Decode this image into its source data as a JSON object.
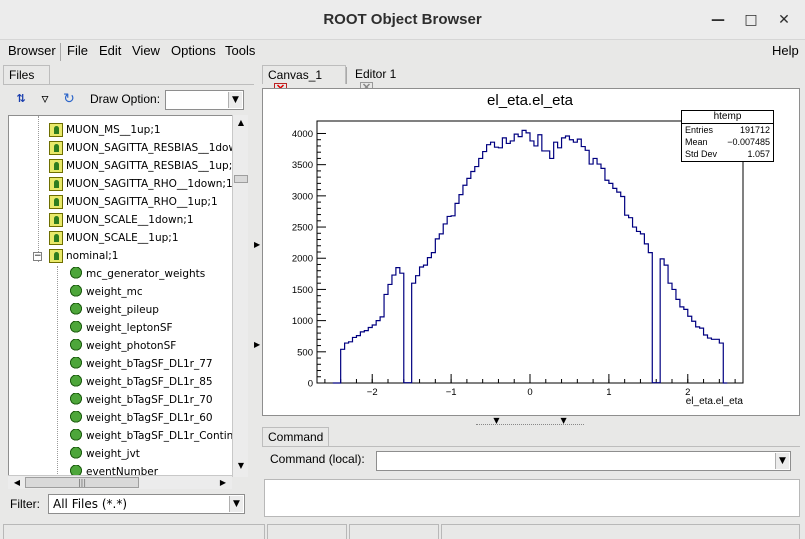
{
  "window": {
    "title": "ROOT Object Browser"
  },
  "menubar": {
    "left": [
      {
        "id": "browser",
        "label": "Browser"
      },
      {
        "id": "file",
        "label": "File"
      },
      {
        "id": "edit",
        "label": "Edit"
      },
      {
        "id": "view",
        "label": "View"
      },
      {
        "id": "options",
        "label": "Options"
      },
      {
        "id": "tools",
        "label": "Tools"
      }
    ],
    "help": "Help"
  },
  "left_panel": {
    "tab": "Files",
    "draw_option_label": "Draw Option:",
    "draw_option_value": "",
    "filter_label": "Filter:",
    "filter_value": "All Files (*.*)"
  },
  "tree": {
    "items": [
      {
        "label": "MUON_MS__1up;1",
        "type": "tree"
      },
      {
        "label": "MUON_SAGITTA_RESBIAS__1dow",
        "type": "tree"
      },
      {
        "label": "MUON_SAGITTA_RESBIAS__1up;",
        "type": "tree"
      },
      {
        "label": "MUON_SAGITTA_RHO__1down;1",
        "type": "tree"
      },
      {
        "label": "MUON_SAGITTA_RHO__1up;1",
        "type": "tree"
      },
      {
        "label": "MUON_SCALE__1down;1",
        "type": "tree"
      },
      {
        "label": "MUON_SCALE__1up;1",
        "type": "tree"
      },
      {
        "label": "nominal;1",
        "type": "tree"
      },
      {
        "label": "mc_generator_weights",
        "type": "leaf"
      },
      {
        "label": "weight_mc",
        "type": "leaf"
      },
      {
        "label": "weight_pileup",
        "type": "leaf"
      },
      {
        "label": "weight_leptonSF",
        "type": "leaf"
      },
      {
        "label": "weight_photonSF",
        "type": "leaf"
      },
      {
        "label": "weight_bTagSF_DL1r_77",
        "type": "leaf"
      },
      {
        "label": "weight_bTagSF_DL1r_85",
        "type": "leaf"
      },
      {
        "label": "weight_bTagSF_DL1r_70",
        "type": "leaf"
      },
      {
        "label": "weight_bTagSF_DL1r_60",
        "type": "leaf"
      },
      {
        "label": "weight_bTagSF_DL1r_Continuo",
        "type": "leaf"
      },
      {
        "label": "weight_jvt",
        "type": "leaf"
      },
      {
        "label": "eventNumber",
        "type": "leaf"
      }
    ]
  },
  "tabs": {
    "canvas": "Canvas_1",
    "editor": "Editor 1"
  },
  "stats": {
    "header": "htemp",
    "rows": [
      {
        "key": "Entries",
        "value": "191712"
      },
      {
        "key": "Mean",
        "value": "−0.007485"
      },
      {
        "key": "Std Dev",
        "value": "1.057"
      }
    ]
  },
  "chart_data": {
    "type": "bar",
    "style": "step-histogram",
    "title": "el_eta.el_eta",
    "xlabel": "el_eta.el_eta",
    "ylabel": "",
    "xlim": [
      -2.7,
      2.7
    ],
    "ylim": [
      0,
      4200
    ],
    "bin_range": [
      -2.5,
      2.5
    ],
    "x_ticks": [
      "−2",
      "−1",
      "0",
      "1",
      "2"
    ],
    "y_ticks": [
      "0",
      "500",
      "1000",
      "1500",
      "2000",
      "2500",
      "3000",
      "3500",
      "4000"
    ],
    "line_color": "#000080",
    "values": [
      0,
      0,
      540,
      640,
      660,
      730,
      760,
      820,
      840,
      890,
      930,
      1000,
      1060,
      1420,
      1580,
      1730,
      1850,
      1760,
      5,
      5,
      1600,
      1720,
      1860,
      1890,
      2010,
      2090,
      2310,
      2390,
      2550,
      2670,
      2680,
      2880,
      3020,
      3170,
      3280,
      3390,
      3470,
      3600,
      3710,
      3820,
      3860,
      3780,
      3770,
      3930,
      3840,
      3880,
      3990,
      3950,
      4050,
      4010,
      3880,
      3800,
      3980,
      3720,
      3720,
      3600,
      3860,
      3770,
      3930,
      3960,
      3900,
      3860,
      3910,
      3790,
      3730,
      3510,
      3600,
      3510,
      3440,
      3250,
      3200,
      3120,
      3060,
      2990,
      2690,
      2650,
      2500,
      2430,
      2390,
      2230,
      2090,
      5,
      5,
      1990,
      1890,
      1600,
      1500,
      1340,
      1220,
      1180,
      1070,
      990,
      900,
      880,
      770,
      720,
      700,
      700,
      640,
      0
    ]
  },
  "command": {
    "tab": "Command",
    "label": "Command (local):",
    "value": ""
  }
}
